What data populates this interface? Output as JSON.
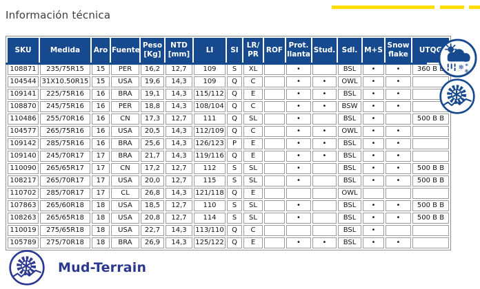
{
  "page": {
    "title": "Información técnica",
    "footer_logo_label": "Mud-Terrain"
  },
  "colors": {
    "header_blue": "#17498E",
    "logo_blue": "#2B3990",
    "accent_yellow": "#FFDE00",
    "title_gray": "#3C3C3B"
  },
  "icons": {
    "right_top": "all-weather-icon",
    "right_bottom": "offroad-tire-icon",
    "footer": "mud-terrain-logo-icon"
  },
  "table": {
    "columns": [
      "SKU",
      "Medida",
      "Aro",
      "Fuente",
      "Peso\n[Kg]",
      "NTD\n[mm]",
      "LI",
      "SI",
      "LR/\nPR",
      "ROF",
      "Prot.\nllanta",
      "Stud.",
      "Sdl.",
      "M+S",
      "Snow\nflake",
      "UTQG"
    ],
    "rows": [
      [
        "108871",
        "235/75R15",
        "15",
        "PER",
        "16,2",
        "12,7",
        "109",
        "S",
        "XL",
        "",
        "•",
        "",
        "BSL",
        "•",
        "•",
        "360 B B"
      ],
      [
        "104544",
        "31X10.50R15",
        "15",
        "USA",
        "19,6",
        "14,3",
        "109",
        "Q",
        "C",
        "",
        "•",
        "•",
        "OWL",
        "•",
        "•",
        ""
      ],
      [
        "109141",
        "225/75R16",
        "16",
        "BRA",
        "19,1",
        "14,3",
        "115/112",
        "Q",
        "E",
        "",
        "•",
        "•",
        "BSL",
        "•",
        "•",
        ""
      ],
      [
        "108870",
        "245/75R16",
        "16",
        "PER",
        "18,8",
        "14,3",
        "108/104",
        "Q",
        "C",
        "",
        "•",
        "•",
        "BSW",
        "•",
        "•",
        ""
      ],
      [
        "110486",
        "255/70R16",
        "16",
        "CN",
        "17,3",
        "12,7",
        "111",
        "Q",
        "SL",
        "",
        "•",
        "",
        "BSL",
        "•",
        "",
        "500 B B"
      ],
      [
        "104577",
        "265/75R16",
        "16",
        "USA",
        "20,5",
        "14,3",
        "112/109",
        "Q",
        "C",
        "",
        "•",
        "•",
        "OWL",
        "•",
        "•",
        ""
      ],
      [
        "109142",
        "285/75R16",
        "16",
        "BRA",
        "25,6",
        "14,3",
        "126/123",
        "P",
        "E",
        "",
        "•",
        "•",
        "BSL",
        "•",
        "•",
        ""
      ],
      [
        "109140",
        "245/70R17",
        "17",
        "BRA",
        "21,7",
        "14,3",
        "119/116",
        "Q",
        "E",
        "",
        "•",
        "•",
        "BSL",
        "•",
        "•",
        ""
      ],
      [
        "110090",
        "265/65R17",
        "17",
        "CN",
        "17,2",
        "12,7",
        "112",
        "S",
        "SL",
        "",
        "•",
        "",
        "BSL",
        "•",
        "•",
        "500 B B"
      ],
      [
        "108217",
        "265/70R17",
        "17",
        "USA",
        "20,0",
        "12,7",
        "115",
        "S",
        "SL",
        "",
        "•",
        "",
        "BSL",
        "•",
        "•",
        "500 B B"
      ],
      [
        "110702",
        "285/70R17",
        "17",
        "CL",
        "26,8",
        "14,3",
        "121/118",
        "Q",
        "E",
        "",
        "",
        "",
        "OWL",
        "",
        "",
        ""
      ],
      [
        "107863",
        "265/60R18",
        "18",
        "USA",
        "18,5",
        "12,7",
        "110",
        "S",
        "SL",
        "",
        "•",
        "",
        "BSL",
        "•",
        "•",
        "500 B B"
      ],
      [
        "108263",
        "265/65R18",
        "18",
        "USA",
        "20,8",
        "12,7",
        "114",
        "S",
        "SL",
        "",
        "•",
        "",
        "BSL",
        "•",
        "•",
        "500 B B"
      ],
      [
        "110019",
        "275/65R18",
        "18",
        "USA",
        "22,7",
        "14,3",
        "113/110",
        "Q",
        "C",
        "",
        "",
        "",
        "BSL",
        "•",
        "",
        ""
      ],
      [
        "105789",
        "275/70R18",
        "18",
        "BRA",
        "26,9",
        "14,3",
        "125/122",
        "Q",
        "E",
        "",
        "•",
        "•",
        "BSL",
        "•",
        "•",
        ""
      ]
    ]
  }
}
